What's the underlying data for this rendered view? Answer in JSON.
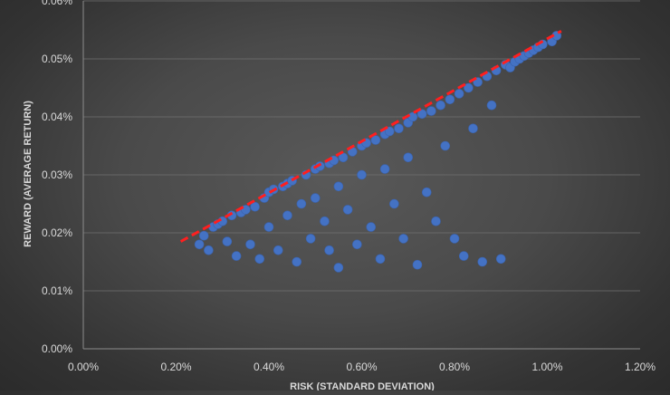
{
  "chart_data": {
    "type": "scatter",
    "title": "",
    "xlabel": "RISK (STANDARD DEVIATION)",
    "ylabel": "REWARD (AVERAGE RETURN)",
    "xlim": [
      0,
      0.012
    ],
    "ylim": [
      0,
      0.0006
    ],
    "x_ticks": [
      0,
      0.002,
      0.004,
      0.006,
      0.008,
      0.01,
      0.012
    ],
    "x_tick_labels": [
      "0.00%",
      "0.20%",
      "0.40%",
      "0.60%",
      "0.80%",
      "1.00%",
      "1.20%"
    ],
    "y_ticks": [
      0,
      0.0001,
      0.0002,
      0.0003,
      0.0004,
      0.0005,
      0.0006
    ],
    "y_tick_labels": [
      "0.00%",
      "0.01%",
      "0.02%",
      "0.03%",
      "0.04%",
      "0.05%",
      "0.06%"
    ],
    "grid": true,
    "legend": "none",
    "series": [
      {
        "marker_color": "#4472c4",
        "points": [
          [
            0.0025,
            0.00018
          ],
          [
            0.0026,
            0.000195
          ],
          [
            0.0027,
            0.00017
          ],
          [
            0.0028,
            0.00021
          ],
          [
            0.0029,
            0.000215
          ],
          [
            0.003,
            0.00022
          ],
          [
            0.0031,
            0.000185
          ],
          [
            0.0032,
            0.00023
          ],
          [
            0.0033,
            0.00016
          ],
          [
            0.0034,
            0.000235
          ],
          [
            0.0035,
            0.00024
          ],
          [
            0.0036,
            0.00018
          ],
          [
            0.0037,
            0.000245
          ],
          [
            0.0038,
            0.000155
          ],
          [
            0.0039,
            0.00026
          ],
          [
            0.004,
            0.00027
          ],
          [
            0.004,
            0.00021
          ],
          [
            0.0041,
            0.000275
          ],
          [
            0.0042,
            0.00017
          ],
          [
            0.0043,
            0.00028
          ],
          [
            0.0044,
            0.000285
          ],
          [
            0.0044,
            0.00023
          ],
          [
            0.0045,
            0.00029
          ],
          [
            0.0046,
            0.00015
          ],
          [
            0.0047,
            0.00025
          ],
          [
            0.0048,
            0.0003
          ],
          [
            0.0049,
            0.00019
          ],
          [
            0.005,
            0.00031
          ],
          [
            0.005,
            0.00026
          ],
          [
            0.0051,
            0.000315
          ],
          [
            0.0052,
            0.00022
          ],
          [
            0.0053,
            0.00032
          ],
          [
            0.0053,
            0.00017
          ],
          [
            0.0054,
            0.000325
          ],
          [
            0.0055,
            0.00014
          ],
          [
            0.0055,
            0.00028
          ],
          [
            0.0056,
            0.00033
          ],
          [
            0.0057,
            0.00024
          ],
          [
            0.0058,
            0.00034
          ],
          [
            0.0059,
            0.00018
          ],
          [
            0.006,
            0.00035
          ],
          [
            0.006,
            0.0003
          ],
          [
            0.0061,
            0.000355
          ],
          [
            0.0062,
            0.00021
          ],
          [
            0.0063,
            0.00036
          ],
          [
            0.0064,
            0.000155
          ],
          [
            0.0065,
            0.00037
          ],
          [
            0.0065,
            0.00031
          ],
          [
            0.0066,
            0.000375
          ],
          [
            0.0067,
            0.00025
          ],
          [
            0.0068,
            0.00038
          ],
          [
            0.0069,
            0.00019
          ],
          [
            0.007,
            0.00039
          ],
          [
            0.007,
            0.00033
          ],
          [
            0.0071,
            0.0004
          ],
          [
            0.0072,
            0.000145
          ],
          [
            0.0073,
            0.000405
          ],
          [
            0.0074,
            0.00027
          ],
          [
            0.0075,
            0.00041
          ],
          [
            0.0076,
            0.00022
          ],
          [
            0.0077,
            0.00042
          ],
          [
            0.0078,
            0.00035
          ],
          [
            0.0079,
            0.00043
          ],
          [
            0.008,
            0.00019
          ],
          [
            0.0081,
            0.00044
          ],
          [
            0.0082,
            0.00016
          ],
          [
            0.0083,
            0.00045
          ],
          [
            0.0084,
            0.00038
          ],
          [
            0.0085,
            0.00046
          ],
          [
            0.0086,
            0.00015
          ],
          [
            0.0087,
            0.00047
          ],
          [
            0.0088,
            0.00042
          ],
          [
            0.0089,
            0.00048
          ],
          [
            0.009,
            0.000155
          ],
          [
            0.0091,
            0.00049
          ],
          [
            0.0092,
            0.000485
          ],
          [
            0.0093,
            0.000495
          ],
          [
            0.0094,
            0.0005
          ],
          [
            0.0095,
            0.000505
          ],
          [
            0.0096,
            0.00051
          ],
          [
            0.0097,
            0.000515
          ],
          [
            0.0098,
            0.00052
          ],
          [
            0.0099,
            0.000525
          ],
          [
            0.0101,
            0.00053
          ],
          [
            0.0102,
            0.00054
          ]
        ]
      }
    ],
    "trendline": {
      "style": "dashed",
      "color": "#ff1f1f",
      "x": [
        0.0021,
        0.0103
      ],
      "y": [
        0.000185,
        0.000548
      ]
    }
  }
}
